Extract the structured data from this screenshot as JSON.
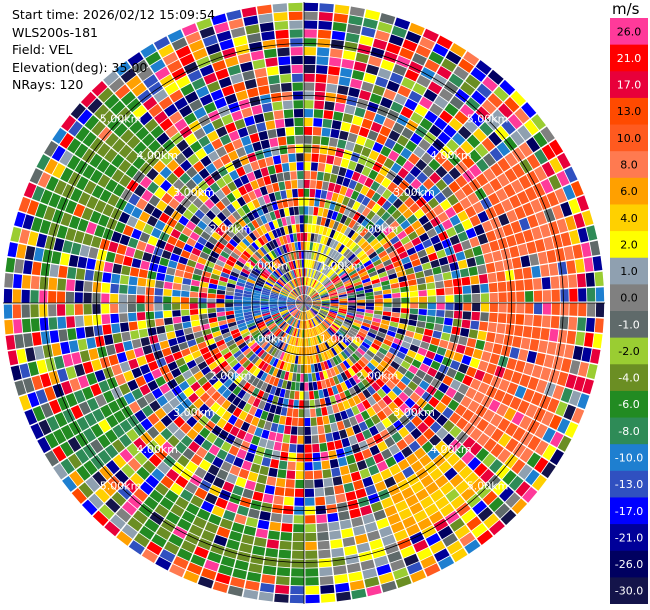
{
  "info": {
    "start_time": "Start time: 2026/02/12 15:09:54",
    "station": "WLS200s-181",
    "field": "Field: VEL",
    "elevation": "Elevation(deg): 35.00",
    "nrays": "NRays: 120"
  },
  "colorbar": {
    "unit": "m/s",
    "ticks": [
      "26.0",
      "21.0",
      "17.0",
      "13.0",
      "10.0",
      "8.0",
      "6.0",
      "4.0",
      "2.0",
      "1.0",
      "0.0",
      "-1.0",
      "-2.0",
      "-4.0",
      "-6.0",
      "-8.0",
      "-10.0",
      "-13.0",
      "-17.0",
      "-21.0",
      "-26.0",
      "-30.0"
    ],
    "colors": [
      "#ff3a9a",
      "#ff0000",
      "#e8003a",
      "#ff4a00",
      "#ff5a1f",
      "#ff7a50",
      "#ffa000",
      "#ffd000",
      "#ffff00",
      "#8fa0b0",
      "#808080",
      "#5f6a6a",
      "#9acd32",
      "#6b8e23",
      "#228b22",
      "#2e8b57",
      "#1e7fd0",
      "#3050c0",
      "#0000ff",
      "#000099",
      "#000060",
      "#14144a"
    ]
  },
  "chart_data": {
    "type": "ppi",
    "field": "VEL",
    "nrays": 120,
    "elevation_deg": 35.0,
    "range_unit": "km",
    "ring_labels": [
      "1.00km",
      "2.00km",
      "3.00km",
      "4.00km",
      "5.00km"
    ],
    "max_range_km": 5.8,
    "value_range": [
      -30.0,
      26.0
    ],
    "sectors": [
      {
        "azimuth_from_deg": 0,
        "azimuth_to_deg": 50,
        "range_from_km": 0.2,
        "range_to_km": 1.6,
        "value": 1.0
      },
      {
        "azimuth_from_deg": 55,
        "azimuth_to_deg": 130,
        "range_from_km": 3.6,
        "range_to_km": 5.3,
        "value": 8.0
      },
      {
        "azimuth_from_deg": 140,
        "azimuth_to_deg": 200,
        "range_from_km": 0.1,
        "range_to_km": 1.2,
        "value": 4.0
      },
      {
        "azimuth_from_deg": 135,
        "azimuth_to_deg": 160,
        "range_from_km": 3.5,
        "range_to_km": 5.0,
        "value": 4.0
      },
      {
        "azimuth_from_deg": 160,
        "azimuth_to_deg": 178,
        "range_from_km": 4.2,
        "range_to_km": 5.5,
        "value": 0.0
      },
      {
        "azimuth_from_deg": 178,
        "azimuth_to_deg": 218,
        "range_from_km": 4.4,
        "range_to_km": 5.5,
        "value": -6.0
      },
      {
        "azimuth_from_deg": 250,
        "azimuth_to_deg": 290,
        "range_from_km": 0.1,
        "range_to_km": 1.3,
        "value": -13.0
      },
      {
        "azimuth_from_deg": 285,
        "azimuth_to_deg": 320,
        "range_from_km": 4.0,
        "range_to_km": 5.4,
        "value": -6.0
      },
      {
        "azimuth_from_deg": 230,
        "azimuth_to_deg": 250,
        "range_from_km": 4.0,
        "range_to_km": 5.4,
        "value": -8.0
      }
    ]
  }
}
